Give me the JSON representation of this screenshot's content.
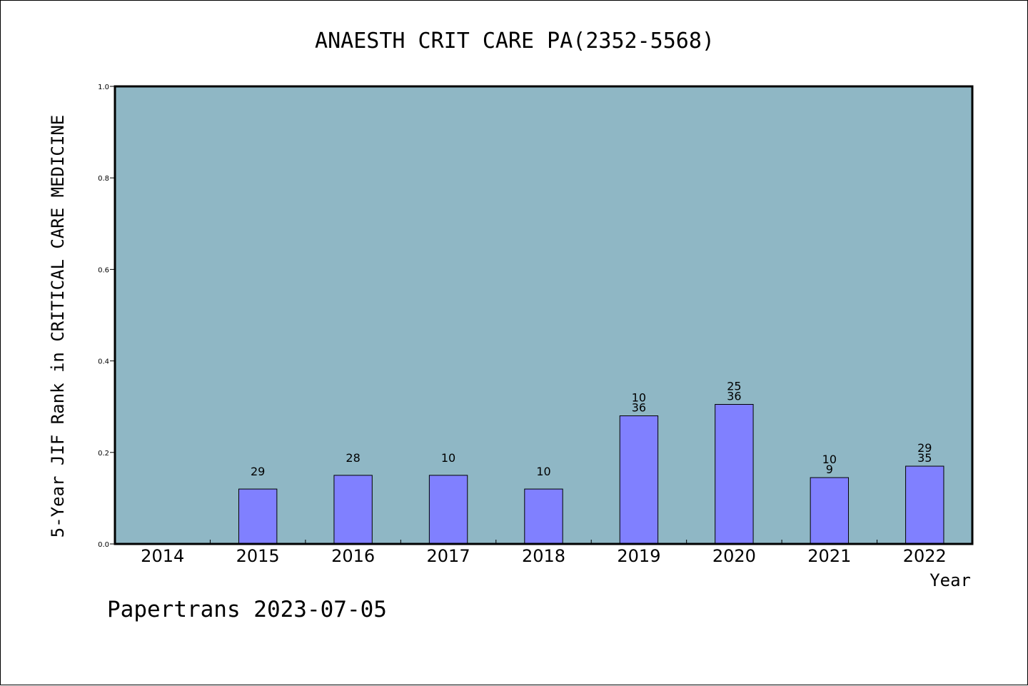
{
  "colors": {
    "plot_background": "#8fb7c5",
    "bar_fill": "#8080ff",
    "axis": "#000000"
  },
  "footer": "Papertrans 2023-07-05",
  "chart_data": {
    "type": "bar",
    "title": "ANAESTH CRIT CARE PA(2352-5568)",
    "xlabel": "Year",
    "ylabel": "5-Year JIF Rank in CRITICAL CARE MEDICINE",
    "ylim": [
      0,
      1.0
    ],
    "yticks": [
      "0.0",
      "0.2",
      "0.4",
      "0.6",
      "0.8",
      "1.0"
    ],
    "grid": false,
    "categories": [
      "2014",
      "2015",
      "2016",
      "2017",
      "2018",
      "2019",
      "2020",
      "2021",
      "2022"
    ],
    "values": [
      null,
      0.12,
      0.15,
      0.15,
      0.12,
      0.28,
      0.305,
      0.145,
      0.17
    ],
    "bar_labels": [
      [],
      [
        "29"
      ],
      [
        "28"
      ],
      [
        "10"
      ],
      [
        "10"
      ],
      [
        "10",
        "36"
      ],
      [
        "25",
        "36"
      ],
      [
        "10",
        "9"
      ],
      [
        "29",
        "35"
      ]
    ]
  }
}
